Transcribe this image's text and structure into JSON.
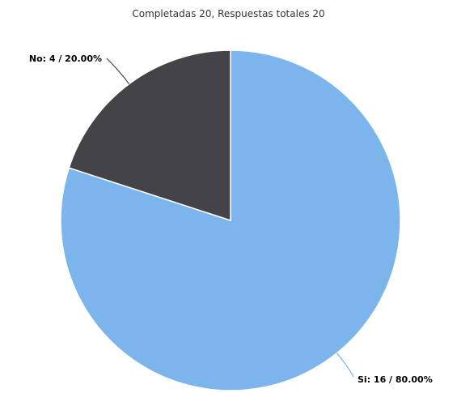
{
  "chart_data": {
    "type": "pie",
    "title": "Completadas 20, Respuestas totales 20",
    "slices": [
      {
        "name": "Si",
        "value": 16,
        "percent": 80.0,
        "label": "Si: 16 / 80.00%",
        "color": "#7cb5ec"
      },
      {
        "name": "No",
        "value": 4,
        "percent": 20.0,
        "label": "No: 4 / 20.00%",
        "color": "#434348"
      }
    ]
  }
}
